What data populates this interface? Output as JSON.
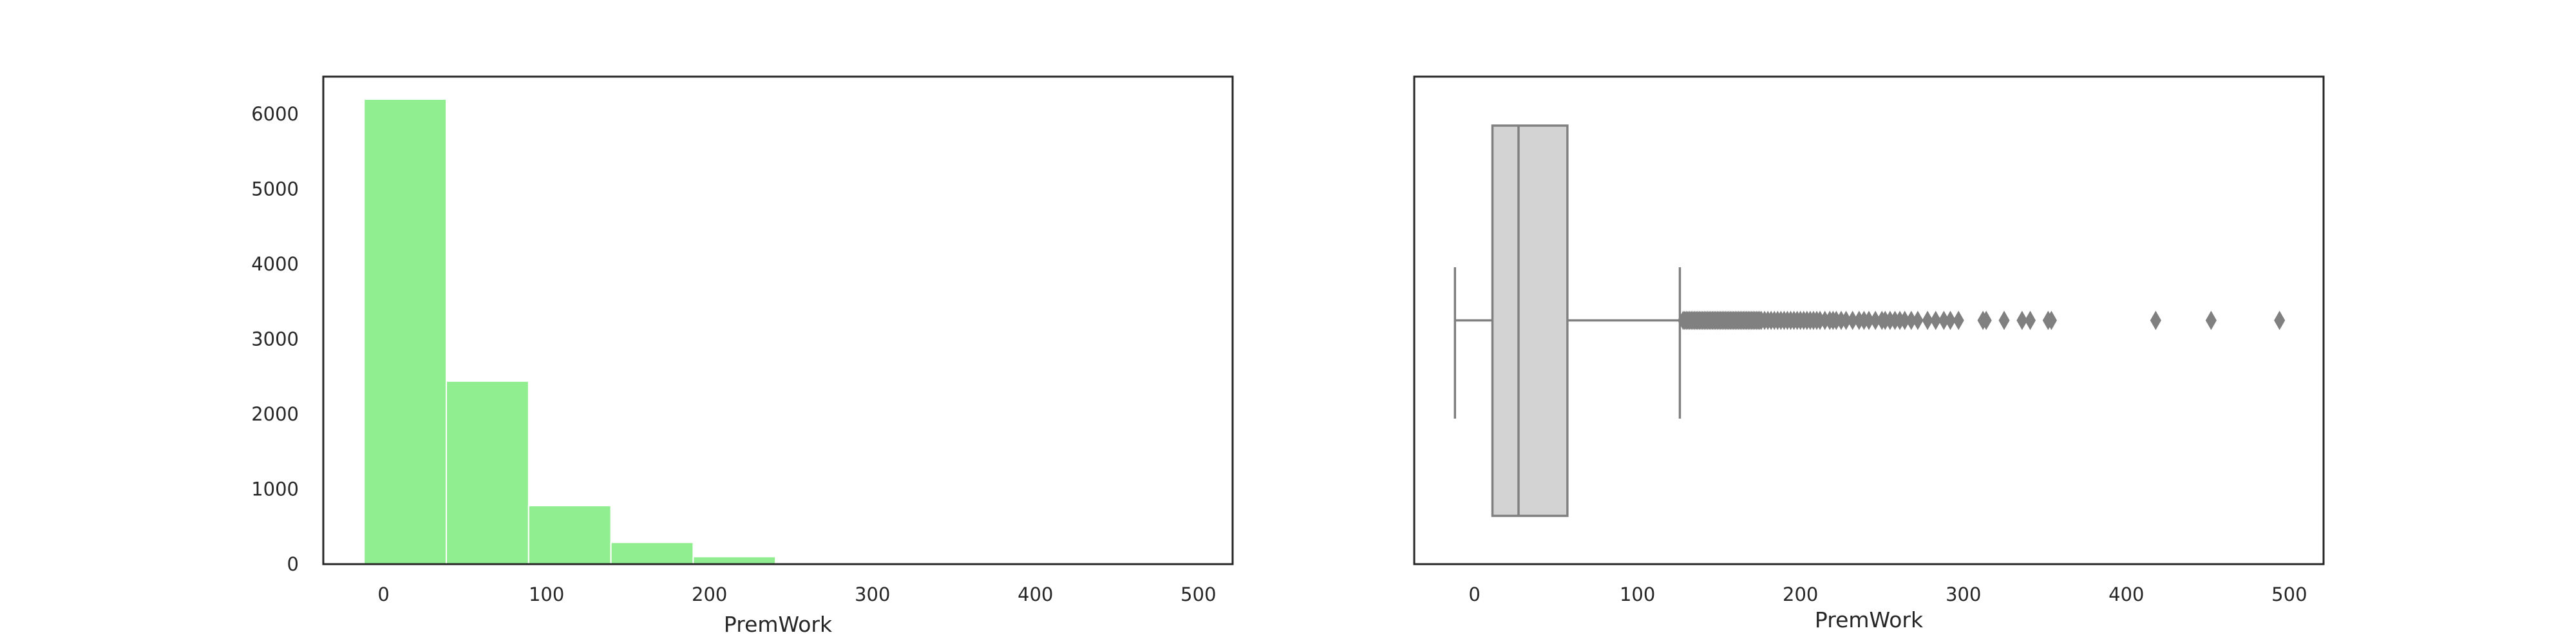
{
  "chart_data": [
    {
      "type": "histogram",
      "title": "",
      "xlabel": "PremWork",
      "ylabel": "",
      "xlim": [
        -37,
        521
      ],
      "ylim": [
        0,
        6500
      ],
      "x_ticks": [
        0,
        100,
        200,
        300,
        400,
        500
      ],
      "y_ticks": [
        0,
        1000,
        2000,
        3000,
        4000,
        5000,
        6000
      ],
      "bin_edges": [
        -12,
        38.5,
        89,
        139.5,
        190,
        240.5,
        291,
        341.5,
        392,
        442.5,
        493
      ],
      "counts": [
        6200,
        2440,
        780,
        290,
        100,
        20,
        8,
        4,
        1,
        1
      ],
      "color": "#90ee90",
      "edgecolor": "#ffffff",
      "grid": false
    },
    {
      "type": "boxplot",
      "title": "",
      "xlabel": "PremWork",
      "ylabel": "",
      "xlim": [
        -37,
        521
      ],
      "x_ticks": [
        0,
        100,
        200,
        300,
        400,
        500
      ],
      "whisker_low": -12,
      "q1": 11,
      "median": 27,
      "q3": 57,
      "whisker_high": 126,
      "outliers": [
        128,
        129,
        130,
        131,
        132,
        133,
        134,
        135,
        136,
        137,
        138,
        139,
        140,
        141,
        142,
        143,
        144,
        145,
        146,
        147,
        148,
        149,
        150,
        151,
        152,
        153,
        154,
        155,
        156,
        157,
        158,
        159,
        160,
        161,
        162,
        163,
        164,
        165,
        166,
        167,
        168,
        169,
        170,
        171,
        172,
        173,
        174,
        175,
        176,
        178,
        180,
        182,
        184,
        186,
        188,
        190,
        192,
        194,
        196,
        198,
        200,
        202,
        204,
        206,
        208,
        210,
        212,
        215,
        218,
        220,
        222,
        225,
        228,
        232,
        236,
        239,
        242,
        246,
        250,
        252,
        255,
        258,
        261,
        264,
        268,
        272,
        278,
        283,
        288,
        292,
        297,
        312,
        314,
        325,
        336,
        341,
        352,
        354,
        418,
        452,
        494
      ],
      "box_color": "#d3d3d3",
      "line_color": "#808080",
      "grid": false
    }
  ]
}
